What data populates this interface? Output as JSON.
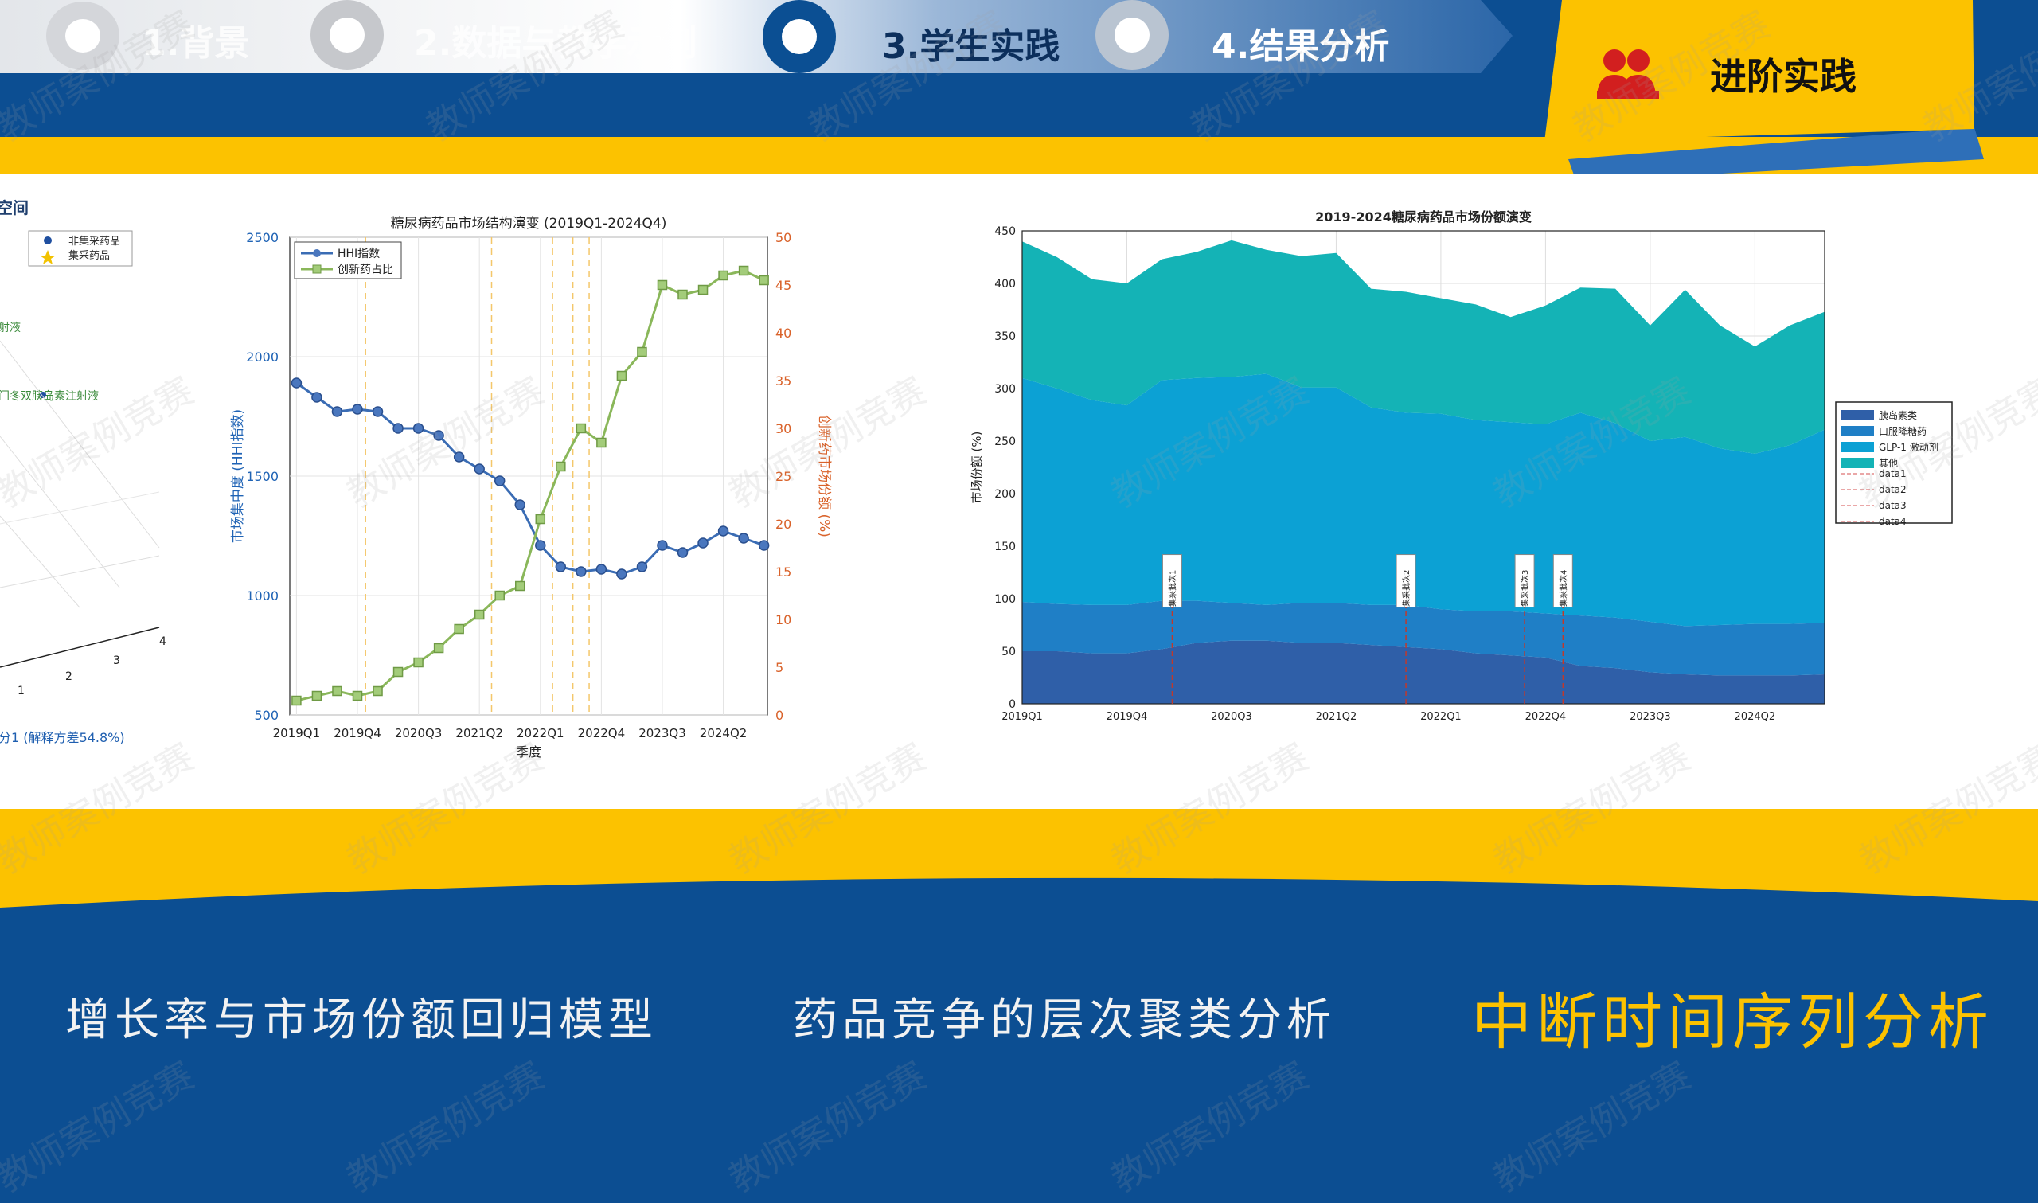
{
  "nav": {
    "steps": [
      {
        "label": "1.背景",
        "state": "done"
      },
      {
        "label": "2.数据与教学示例",
        "state": "done"
      },
      {
        "label": "3.学生实践",
        "state": "active"
      },
      {
        "label": "4.结果分析",
        "state": "upcoming"
      }
    ],
    "advanced_tab": {
      "label": "进阶实践",
      "icon": "users-icon"
    }
  },
  "colors": {
    "navy": "#0c4e92",
    "gold": "#fcc200",
    "white": "#ffffff",
    "hhi_blue": "#3a6cb4",
    "green": "#8ab75a",
    "orange_axis": "#d9622a",
    "area1": "#2f5fa8",
    "area2": "#1f7fc6",
    "area3": "#0ca1d4",
    "area4": "#14b3b6"
  },
  "watermark": "教师案例竞赛",
  "partial_chart": {
    "title_fragment": "空间",
    "legend": [
      "非集采药品",
      "集采药品"
    ],
    "annotations": [
      "射液",
      "门冬双胰岛素注射液"
    ],
    "ticks": [
      "1",
      "2",
      "3",
      "4"
    ],
    "xlabel_fragment": "分1 (解释方差54.8%)"
  },
  "chart_data": [
    {
      "type": "line",
      "title": "糖尿病药品市场结构演变 (2019Q1-2024Q4)",
      "xlabel": "季度",
      "ylabel": "市场集中度 (HHI指数)",
      "y2label": "创新药市场份额 (%)",
      "ylim": [
        500,
        2500
      ],
      "y2lim": [
        0,
        50
      ],
      "yticks": [
        "500",
        "1000",
        "1500",
        "2000",
        "2500"
      ],
      "y2ticks": [
        "0",
        "5",
        "10",
        "15",
        "20",
        "25",
        "30",
        "35",
        "40",
        "45",
        "50"
      ],
      "xtick_labels": [
        "2019Q1",
        "2019Q4",
        "2020Q3",
        "2021Q2",
        "2022Q1",
        "2022Q4",
        "2023Q3",
        "2024Q2"
      ],
      "xtick_index": [
        1,
        4,
        7,
        10,
        13,
        16,
        19,
        22
      ],
      "x": [
        "2019Q1",
        "2019Q2",
        "2019Q3",
        "2019Q4",
        "2020Q1",
        "2020Q2",
        "2020Q3",
        "2020Q4",
        "2021Q1",
        "2021Q2",
        "2021Q3",
        "2021Q4",
        "2022Q1",
        "2022Q2",
        "2022Q3",
        "2022Q4",
        "2023Q1",
        "2023Q2",
        "2023Q3",
        "2023Q4",
        "2024Q1",
        "2024Q2",
        "2024Q3",
        "2024Q4"
      ],
      "series": [
        {
          "name": "HHI指数",
          "axis": "left",
          "marker": "circle",
          "values": [
            1890,
            1830,
            1770,
            1780,
            1770,
            1700,
            1700,
            1670,
            1580,
            1530,
            1480,
            1380,
            1210,
            1120,
            1100,
            1110,
            1090,
            1120,
            1210,
            1180,
            1220,
            1270,
            1240,
            1210
          ]
        },
        {
          "name": "创新药占比",
          "axis": "right",
          "marker": "square",
          "values": [
            1.5,
            2.0,
            2.5,
            2.0,
            2.5,
            4.5,
            5.5,
            7.0,
            9.0,
            10.5,
            12.5,
            13.5,
            20.5,
            26.0,
            30.0,
            28.5,
            35.5,
            38.0,
            45.0,
            44.0,
            44.5,
            46.0,
            46.5,
            45.5
          ]
        }
      ],
      "vlines": [
        4.4,
        10.6,
        13.6,
        14.6,
        15.4
      ],
      "grid": true,
      "legend_position": "top-left"
    },
    {
      "type": "area",
      "title": "2019-2024糖尿病药品市场份额演变",
      "xlabel": "",
      "ylabel": "市场份额 (%)",
      "ylim": [
        0,
        450
      ],
      "yticks": [
        "0",
        "50",
        "100",
        "150",
        "200",
        "250",
        "300",
        "350",
        "400",
        "450"
      ],
      "xtick_labels": [
        "2019Q1",
        "2019Q4",
        "2020Q3",
        "2021Q2",
        "2022Q1",
        "2022Q4",
        "2023Q3",
        "2024Q2"
      ],
      "xtick_index": [
        1,
        4,
        7,
        10,
        13,
        16,
        19,
        22
      ],
      "stacked": true,
      "series": [
        {
          "name": "胰岛素类",
          "values": [
            50,
            50,
            48,
            48,
            52,
            58,
            60,
            60,
            58,
            58,
            56,
            54,
            52,
            48,
            46,
            44,
            36,
            34,
            30,
            28,
            27,
            27,
            27,
            28
          ]
        },
        {
          "name": "口服降糖药",
          "values": [
            47,
            45,
            46,
            46,
            46,
            40,
            36,
            34,
            38,
            38,
            38,
            40,
            38,
            40,
            42,
            42,
            48,
            48,
            48,
            46,
            48,
            49,
            49,
            49
          ]
        },
        {
          "name": "GLP-1 激动剂",
          "values": [
            213,
            205,
            195,
            190,
            210,
            212,
            215,
            220,
            205,
            205,
            188,
            183,
            186,
            182,
            180,
            180,
            193,
            185,
            172,
            180,
            168,
            162,
            170,
            184
          ]
        },
        {
          "name": "其他",
          "values": [
            130,
            125,
            115,
            116,
            115,
            120,
            130,
            118,
            125,
            128,
            113,
            115,
            110,
            110,
            100,
            113,
            119,
            128,
            110,
            140,
            117,
            102,
            114,
            112
          ]
        }
      ],
      "line_series": [
        "data1",
        "data2",
        "data3",
        "data4"
      ],
      "events": [
        {
          "label": "集采批次1",
          "x": 5.3
        },
        {
          "label": "集采批次2",
          "x": 12.0
        },
        {
          "label": "集采批次3",
          "x": 15.4
        },
        {
          "label": "集采批次4",
          "x": 16.5
        }
      ],
      "legend_position": "right"
    }
  ],
  "methods": [
    {
      "label": "增长率与市场份额回归模型",
      "highlight": false
    },
    {
      "label": "药品竞争的层次聚类分析",
      "highlight": false
    },
    {
      "label": "中断时间序列分析",
      "highlight": true
    }
  ]
}
